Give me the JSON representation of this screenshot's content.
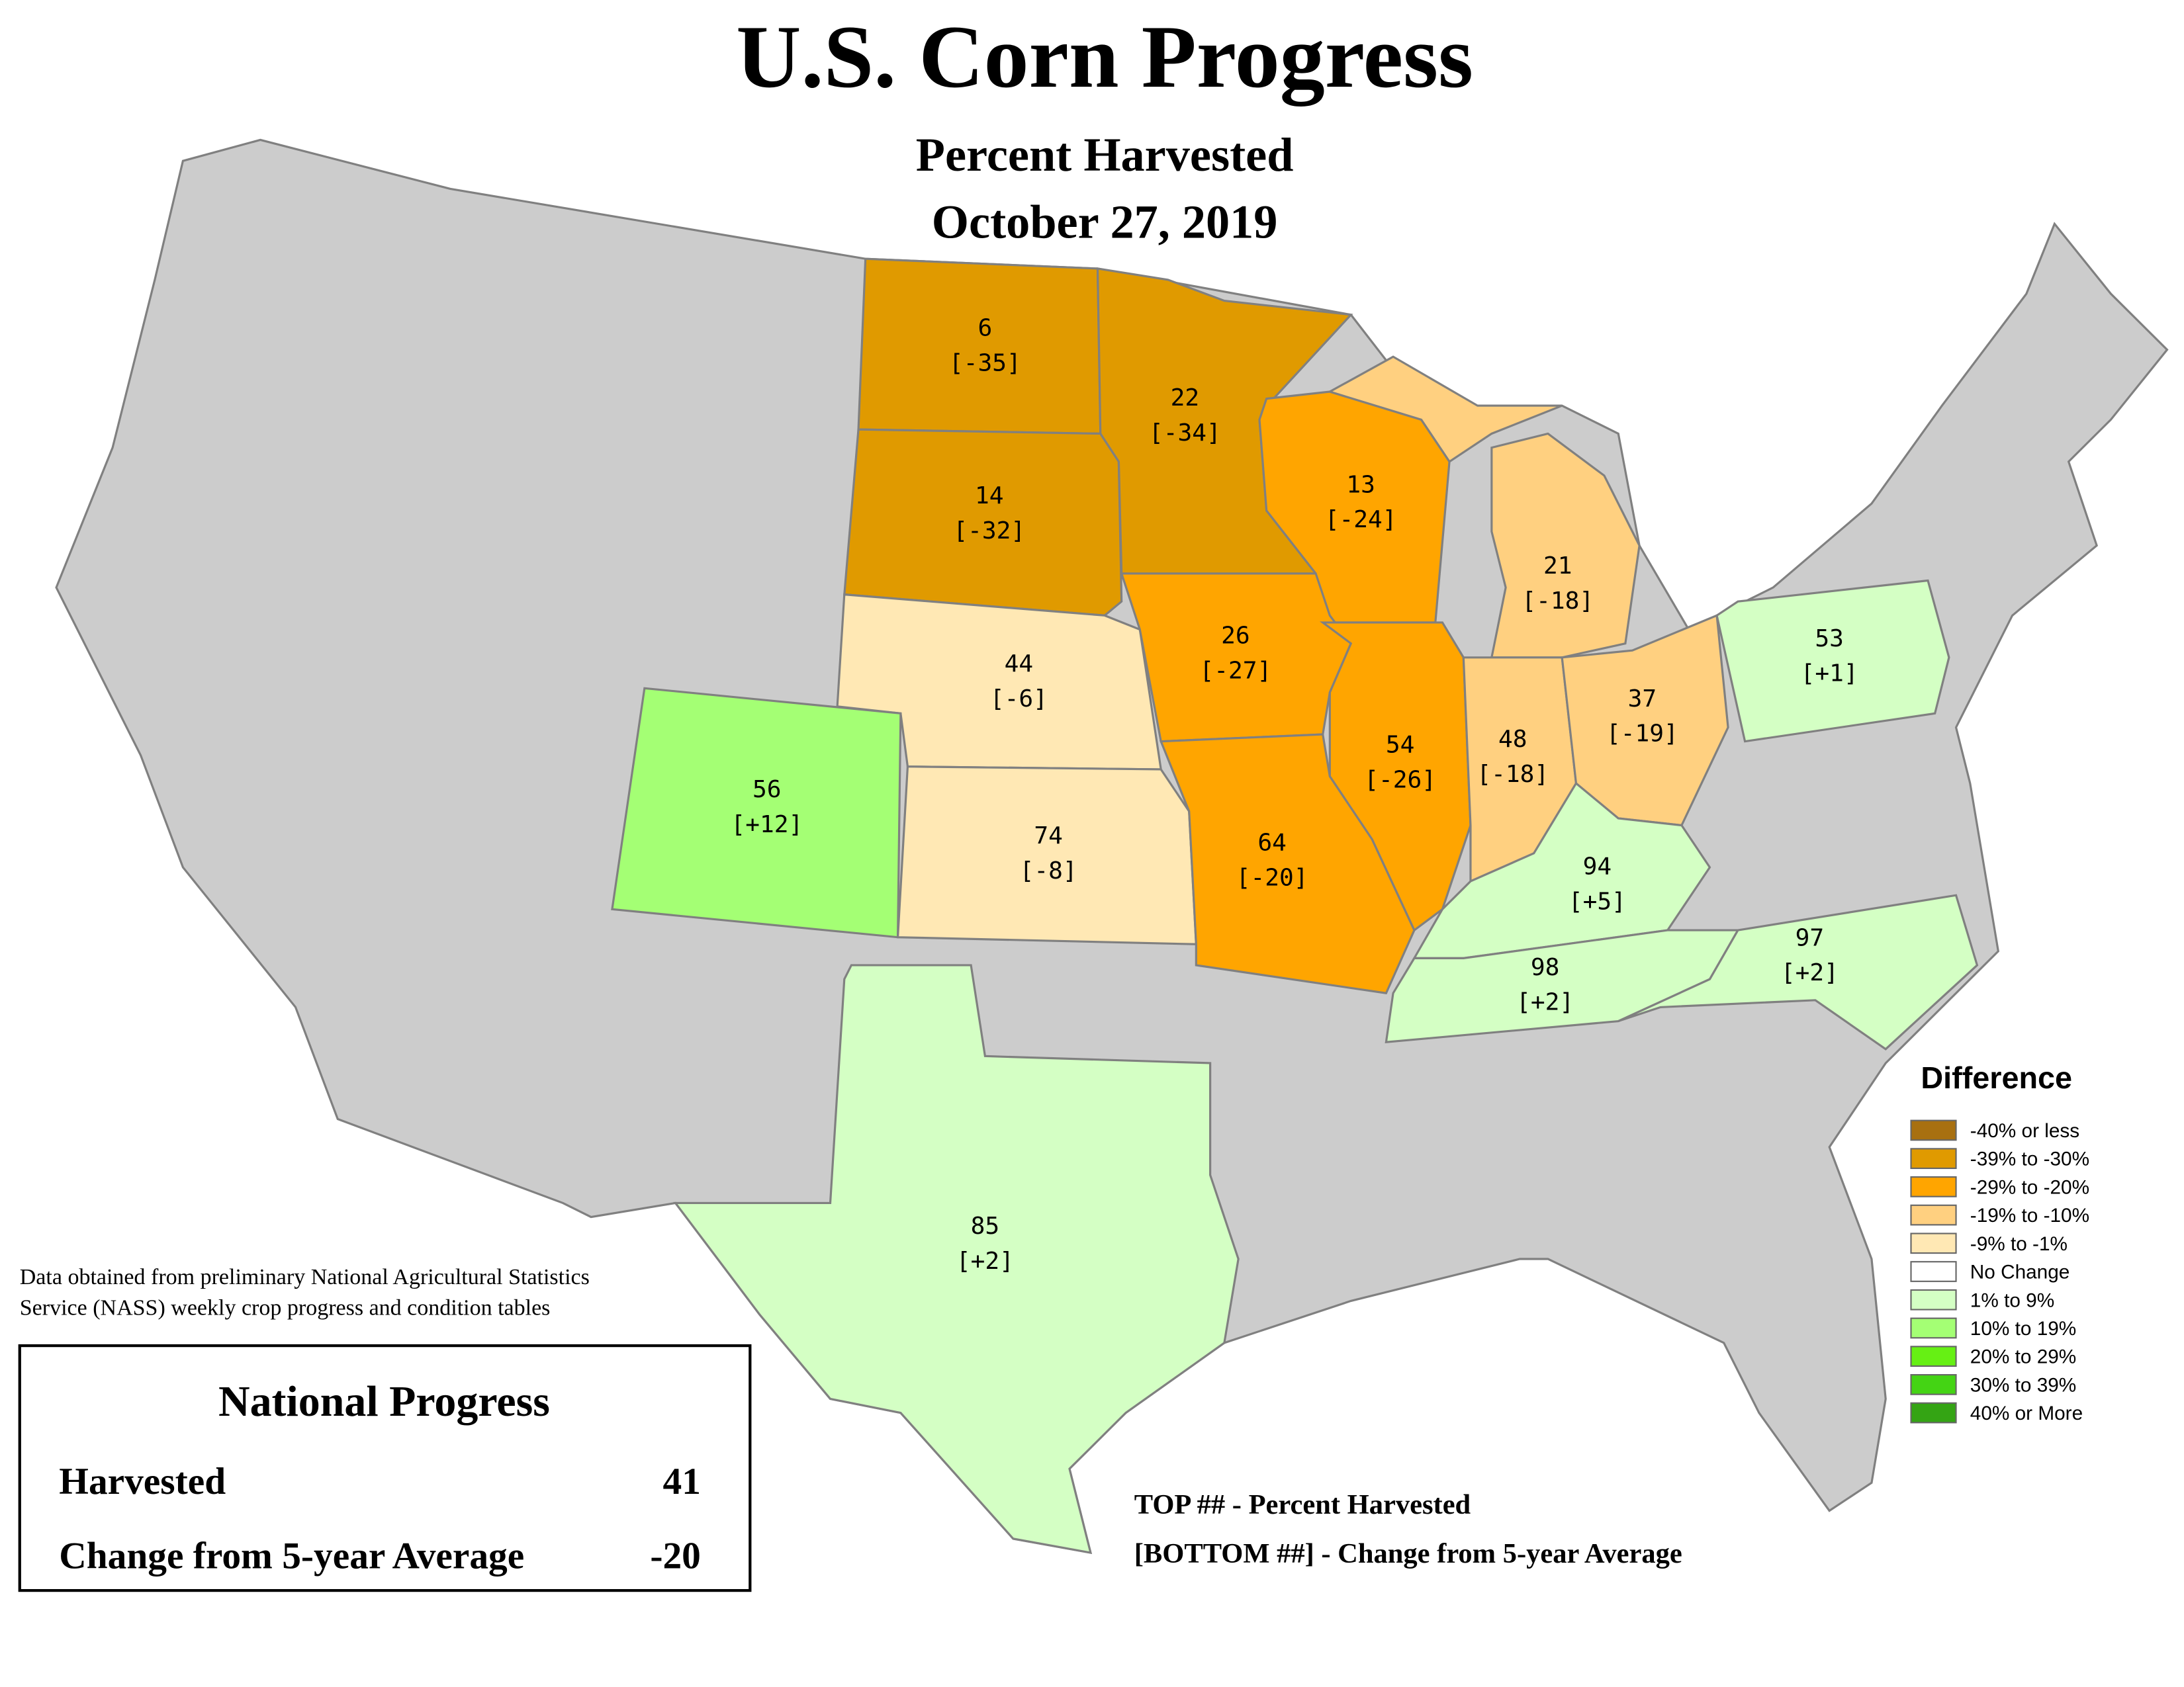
{
  "title": "U.S. Corn Progress",
  "subtitle": "Percent Harvested",
  "date": "October 27, 2019",
  "states": [
    {
      "harvested": 6,
      "change": "[-35]",
      "color": "#e09a00"
    },
    {
      "harvested": 14,
      "change": "[-32]",
      "color": "#e09a00"
    },
    {
      "harvested": 22,
      "change": "[-34]",
      "color": "#e09a00"
    },
    {
      "harvested": 13,
      "change": "[-24]",
      "color": "#ffa500"
    },
    {
      "harvested": 21,
      "change": "[-18]",
      "color": "#ffd080"
    },
    {
      "harvested": 44,
      "change": "[-6]",
      "color": "#ffe8b4"
    },
    {
      "harvested": 26,
      "change": "[-27]",
      "color": "#ffa500"
    },
    {
      "harvested": 54,
      "change": "[-26]",
      "color": "#ffa500"
    },
    {
      "harvested": 48,
      "change": "[-18]",
      "color": "#ffd080"
    },
    {
      "harvested": 37,
      "change": "[-19]",
      "color": "#ffd080"
    },
    {
      "harvested": 53,
      "change": "[+1]",
      "color": "#d4ffc4"
    },
    {
      "harvested": 56,
      "change": "[+12]",
      "color": "#a4ff74"
    },
    {
      "harvested": 74,
      "change": "[-8]",
      "color": "#ffe8b4"
    },
    {
      "harvested": 64,
      "change": "[-20]",
      "color": "#ffa500"
    },
    {
      "harvested": 94,
      "change": "[+5]",
      "color": "#d4ffc4"
    },
    {
      "harvested": 98,
      "change": "[+2]",
      "color": "#d4ffc4"
    },
    {
      "harvested": 97,
      "change": "[+2]",
      "color": "#d4ffc4"
    },
    {
      "harvested": 85,
      "change": "[+2]",
      "color": "#d4ffc4"
    }
  ],
  "legend": {
    "title": "Difference",
    "items": [
      {
        "label": "-40% or less",
        "color": "#a87010"
      },
      {
        "label": "-39% to -30%",
        "color": "#e09a00"
      },
      {
        "label": "-29% to -20%",
        "color": "#ffa500"
      },
      {
        "label": "-19% to -10%",
        "color": "#ffd080"
      },
      {
        "label": "-9% to -1%",
        "color": "#ffe8b4"
      },
      {
        "label": "No Change",
        "color": "#ffffff"
      },
      {
        "label": "1% to 9%",
        "color": "#d4ffc4"
      },
      {
        "label": "10% to 19%",
        "color": "#a4ff74"
      },
      {
        "label": "20% to 29%",
        "color": "#66f014"
      },
      {
        "label": "30% to 39%",
        "color": "#44d414"
      },
      {
        "label": "40% or More",
        "color": "#34a414"
      }
    ]
  },
  "source": [
    "Data obtained from preliminary National Agricultural Statistics",
    "Service (NASS) weekly crop progress and condition tables"
  ],
  "key": [
    "TOP ## - Percent Harvested",
    "[BOTTOM ##] - Change from 5-year Average"
  ],
  "national": {
    "title": "National Progress",
    "rows": [
      {
        "label": "Harvested",
        "value": 41
      },
      {
        "label": "Change from 5-year Average",
        "value": -20
      }
    ]
  }
}
